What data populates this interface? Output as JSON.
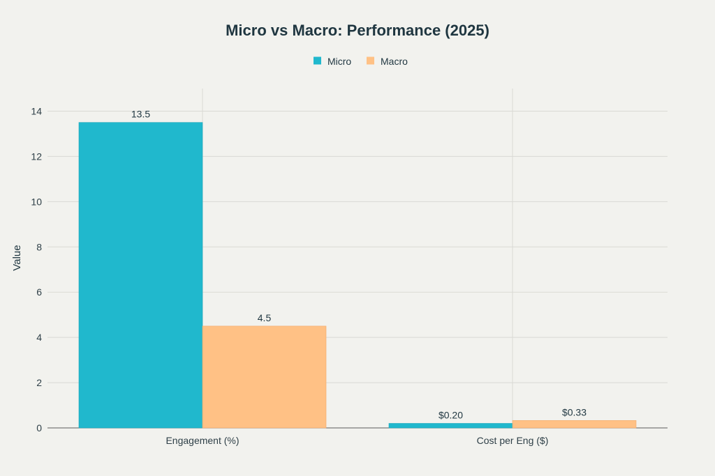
{
  "chart_data": {
    "type": "bar",
    "title": "Micro vs Macro: Performance (2025)",
    "xlabel": "",
    "ylabel": "Value",
    "categories": [
      "Engagement (%)",
      "Cost per Eng ($)"
    ],
    "ylim": [
      0,
      15
    ],
    "yticks": [
      0,
      2,
      4,
      6,
      8,
      10,
      12,
      14
    ],
    "grid": true,
    "legend_position": "top-center",
    "series": [
      {
        "name": "Micro",
        "color": "#20b8cd",
        "values": [
          13.5,
          0.2
        ],
        "labels": [
          "13.5",
          "$0.20"
        ]
      },
      {
        "name": "Macro",
        "color": "#ffc185",
        "values": [
          4.5,
          0.33
        ],
        "labels": [
          "4.5",
          "$0.33"
        ]
      }
    ]
  }
}
